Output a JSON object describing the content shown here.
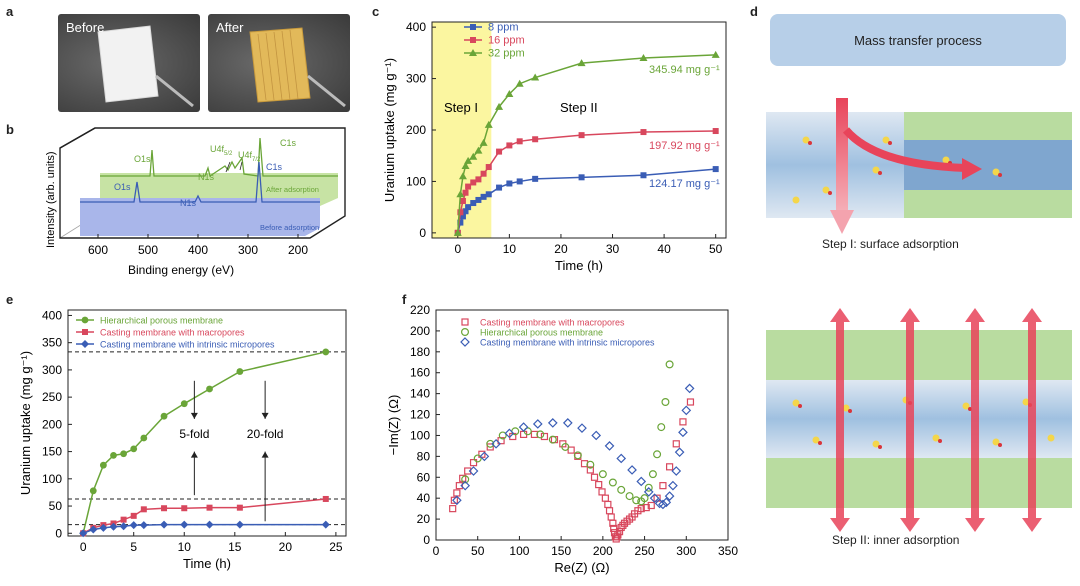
{
  "panels": {
    "a": {
      "label": "a",
      "before": "Before",
      "after": "After"
    },
    "b": {
      "label": "b",
      "ylabel": "Intensity (arb. units)",
      "xlabel": "Binding energy (eV)",
      "xticks": [
        "600",
        "500",
        "400",
        "300",
        "200"
      ],
      "peaks_after": {
        "o1s": "O1s",
        "n1s": "N1s",
        "u4f52": "U4f",
        "u4f52_sub": "5/2",
        "u4f72": "U4f",
        "u4f72_sub": "7/2",
        "c1s": "C1s"
      },
      "peaks_before": {
        "o1s": "O1s",
        "n1s": "N1s",
        "c1s": "C1s"
      },
      "after_label": "After adsorption",
      "before_label": "Before adsorption"
    },
    "c": {
      "label": "c"
    },
    "d": {
      "label": "d",
      "title": "Mass transfer process",
      "step1": "Step I: surface adsorption",
      "step2": "Step II: inner adsorption"
    },
    "e": {
      "label": "e",
      "fold5": "5-fold",
      "fold20": "20-fold"
    },
    "f": {
      "label": "f"
    }
  },
  "colors": {
    "blue": "#3a5db5",
    "red": "#d8475d",
    "green": "#6aa538",
    "yellow": "#fbf6a0",
    "green_fill": "#c7e3a4",
    "blue_fill": "#a9b6ea"
  },
  "chart_data": [
    {
      "id": "c",
      "type": "line",
      "xlabel": "Time (h)",
      "ylabel": "Uranium uptake (mg g⁻¹)",
      "xlim": [
        -5,
        52
      ],
      "ylim": [
        -10,
        410
      ],
      "xticks": [
        0,
        10,
        20,
        30,
        40,
        50
      ],
      "yticks": [
        0,
        100,
        200,
        300,
        400
      ],
      "regions": [
        {
          "from": -5,
          "to": 6.5,
          "label": "Step I"
        }
      ],
      "region_labels": {
        "step1": "Step I",
        "step2": "Step II"
      },
      "series": [
        {
          "name": "8 ppm",
          "color": "#3a5db5",
          "marker": "square",
          "x": [
            0,
            0.5,
            1,
            1.5,
            2,
            3,
            4,
            5,
            6,
            8,
            10,
            12,
            15,
            24,
            36,
            50
          ],
          "y": [
            0,
            20,
            32,
            42,
            50,
            58,
            64,
            70,
            75,
            88,
            96,
            100,
            105,
            108,
            112,
            124
          ],
          "end_label": "124.17 mg g⁻¹"
        },
        {
          "name": "16 ppm",
          "color": "#d8475d",
          "marker": "square",
          "x": [
            0,
            0.5,
            1,
            1.5,
            2,
            3,
            4,
            5,
            6,
            8,
            10,
            12,
            15,
            24,
            36,
            50
          ],
          "y": [
            0,
            40,
            62,
            78,
            90,
            98,
            104,
            115,
            128,
            158,
            170,
            178,
            182,
            190,
            196,
            198
          ],
          "end_label": "197.92 mg g⁻¹"
        },
        {
          "name": "32 ppm",
          "color": "#6aa538",
          "marker": "triangle",
          "x": [
            0,
            0.5,
            1,
            1.5,
            2,
            3,
            4,
            5,
            6,
            8,
            10,
            12,
            15,
            24,
            36,
            50
          ],
          "y": [
            0,
            75,
            110,
            130,
            140,
            148,
            160,
            175,
            210,
            245,
            270,
            290,
            302,
            330,
            340,
            346
          ],
          "end_label": "345.94 mg g⁻¹"
        }
      ]
    },
    {
      "id": "e",
      "type": "line",
      "xlabel": "Time (h)",
      "ylabel": "Uranium uptake (mg g⁻¹)",
      "xlim": [
        -1.5,
        26
      ],
      "ylim": [
        -5,
        410
      ],
      "xticks": [
        0,
        5,
        10,
        15,
        20,
        25
      ],
      "yticks": [
        0,
        50,
        100,
        150,
        200,
        250,
        300,
        350,
        400
      ],
      "hlines": [
        333,
        63,
        16
      ],
      "series": [
        {
          "name": "Hierarchical porous membrane",
          "color": "#6aa538",
          "marker": "circle",
          "x": [
            0,
            1,
            2,
            3,
            4,
            5,
            6,
            8,
            10,
            12.5,
            15.5,
            24
          ],
          "y": [
            0,
            78,
            125,
            143,
            146,
            155,
            175,
            215,
            238,
            265,
            297,
            333
          ]
        },
        {
          "name": "Casting membrane with macropores",
          "color": "#d8475d",
          "marker": "square",
          "x": [
            0,
            1,
            2,
            3,
            4,
            5,
            6,
            8,
            10,
            12.5,
            15.5,
            24
          ],
          "y": [
            0,
            10,
            15,
            18,
            25,
            32,
            44,
            46,
            46,
            47,
            47,
            63
          ]
        },
        {
          "name": "Casting membrane with intrinsic micropores",
          "color": "#3a5db5",
          "marker": "diamond",
          "x": [
            0,
            1,
            2,
            3,
            4,
            5,
            6,
            8,
            10,
            12.5,
            15.5,
            24
          ],
          "y": [
            0,
            7,
            10,
            12,
            13,
            15,
            15,
            16,
            16,
            16,
            16,
            16
          ]
        }
      ]
    },
    {
      "id": "f",
      "type": "scatter",
      "xlabel": "Re(Z) (Ω)",
      "ylabel": "−Im(Z) (Ω)",
      "xlim": [
        0,
        350
      ],
      "ylim": [
        0,
        220
      ],
      "xticks": [
        0,
        50,
        100,
        150,
        200,
        250,
        300,
        350
      ],
      "yticks": [
        0,
        20,
        40,
        60,
        80,
        100,
        120,
        140,
        160,
        180,
        200,
        220
      ],
      "series": [
        {
          "name": "Casting membrane with macropores",
          "color": "#d8475d",
          "marker": "square",
          "x": [
            20,
            22,
            25,
            28,
            32,
            38,
            45,
            55,
            65,
            78,
            92,
            105,
            118,
            130,
            142,
            152,
            162,
            170,
            178,
            185,
            190,
            195,
            199,
            203,
            206,
            208,
            210,
            212,
            213,
            214,
            215,
            216,
            217,
            218,
            220,
            222,
            224,
            226,
            229,
            232,
            235,
            238,
            242,
            246,
            252,
            258,
            265,
            272,
            280,
            288,
            296,
            305
          ],
          "y": [
            30,
            38,
            45,
            52,
            59,
            66,
            74,
            82,
            89,
            95,
            99,
            101,
            101,
            99,
            96,
            92,
            86,
            80,
            73,
            67,
            60,
            53,
            46,
            40,
            34,
            28,
            22,
            16,
            11,
            7,
            3,
            1,
            3,
            5,
            8,
            12,
            14,
            16,
            18,
            20,
            22,
            25,
            28,
            30,
            31,
            33,
            40,
            52,
            70,
            92,
            113,
            132
          ]
        },
        {
          "name": "Hierarchical porous membrane",
          "color": "#6aa538",
          "marker": "circle",
          "x": [
            35,
            50,
            65,
            80,
            95,
            110,
            125,
            140,
            155,
            170,
            185,
            200,
            212,
            222,
            232,
            240,
            246,
            250,
            255,
            260,
            265,
            270,
            275,
            280
          ],
          "y": [
            58,
            78,
            92,
            100,
            104,
            104,
            101,
            96,
            89,
            81,
            72,
            63,
            55,
            48,
            42,
            38,
            37,
            40,
            50,
            63,
            82,
            108,
            132,
            168
          ]
        },
        {
          "name": "Casting membrane with intrinsic micropores",
          "color": "#3a5db5",
          "marker": "diamond",
          "x": [
            25,
            35,
            45,
            58,
            72,
            88,
            105,
            122,
            140,
            158,
            175,
            192,
            208,
            222,
            235,
            246,
            255,
            262,
            268,
            272,
            276,
            280,
            284,
            288,
            292,
            296,
            300,
            304
          ],
          "y": [
            38,
            52,
            66,
            80,
            92,
            102,
            108,
            111,
            112,
            112,
            107,
            100,
            90,
            78,
            67,
            56,
            46,
            40,
            35,
            34,
            36,
            42,
            52,
            66,
            84,
            103,
            124,
            145
          ]
        }
      ]
    }
  ]
}
